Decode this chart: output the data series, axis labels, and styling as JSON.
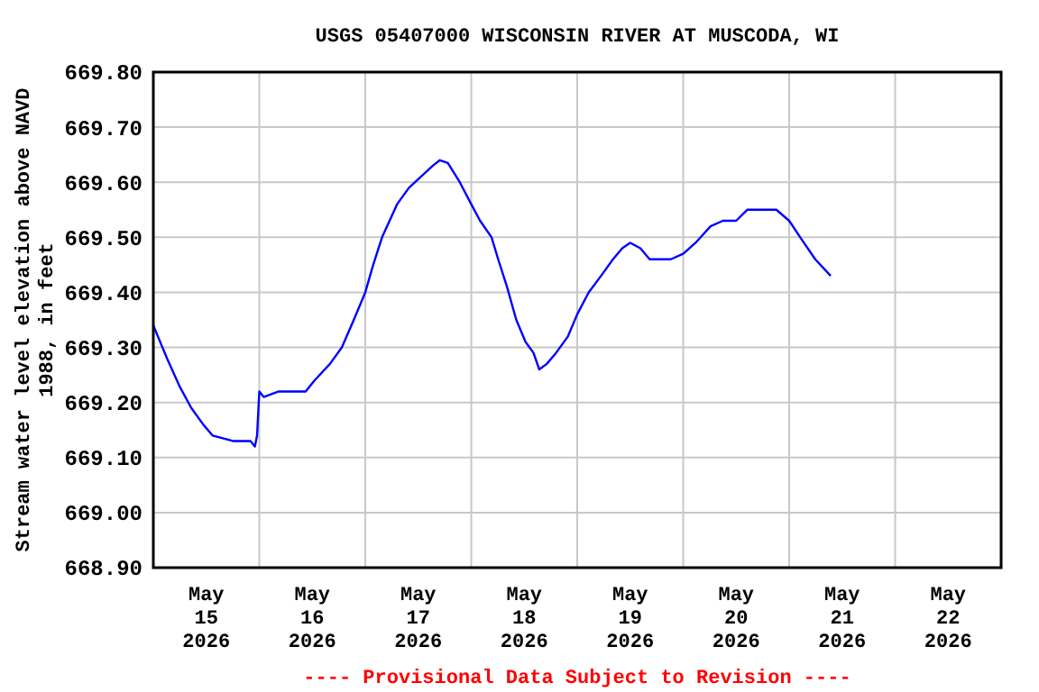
{
  "chart_data": {
    "type": "line",
    "title": "USGS 05407000 WISCONSIN RIVER AT MUSCODA, WI",
    "ylabel": "Stream water level elevation above NAVD 1988, in feet",
    "annotations": [
      "---- Provisional Data Subject to Revision ----"
    ],
    "xlim": [
      "2026-05-15T00:00",
      "2026-05-23T00:00"
    ],
    "xticks": [
      {
        "value": "2026-05-15T12:00",
        "label": "May\n15\n2026"
      },
      {
        "value": "2026-05-16T12:00",
        "label": "May\n16\n2026"
      },
      {
        "value": "2026-05-17T12:00",
        "label": "May\n17\n2026"
      },
      {
        "value": "2026-05-18T12:00",
        "label": "May\n18\n2026"
      },
      {
        "value": "2026-05-19T12:00",
        "label": "May\n19\n2026"
      },
      {
        "value": "2026-05-20T12:00",
        "label": "May\n20\n2026"
      },
      {
        "value": "2026-05-21T12:00",
        "label": "May\n21\n2026"
      },
      {
        "value": "2026-05-22T12:00",
        "label": "May\n22\n2026"
      },
      {
        "value": "2026-05-16T00:00",
        "label": null
      },
      {
        "value": "2026-05-17T00:00",
        "label": null
      },
      {
        "value": "2026-05-18T00:00",
        "label": null
      },
      {
        "value": "2026-05-19T00:00",
        "label": null
      },
      {
        "value": "2026-05-20T00:00",
        "label": null
      },
      {
        "value": "2026-05-21T00:00",
        "label": null
      },
      {
        "value": "2026-05-22T00:00",
        "label": null
      }
    ],
    "ylim": [
      668.9,
      669.8
    ],
    "yticks": [
      {
        "value": 668.9,
        "label": "668.90"
      },
      {
        "value": 669.0,
        "label": "669.00"
      },
      {
        "value": 669.1,
        "label": "669.10"
      },
      {
        "value": 669.2,
        "label": "669.20"
      },
      {
        "value": 669.3,
        "label": "669.30"
      },
      {
        "value": 669.4,
        "label": "669.40"
      },
      {
        "value": 669.5,
        "label": "669.50"
      },
      {
        "value": 669.6,
        "label": "669.60"
      },
      {
        "value": 669.7,
        "label": "669.70"
      },
      {
        "value": 669.8,
        "label": "669.80"
      }
    ],
    "grid": true,
    "marker": "none",
    "line_style": "solid",
    "series": [
      {
        "color": "#0000ff",
        "x": [
          "2026-05-15T00:00",
          "2026-05-15T03:06",
          "2026-05-15T05:54",
          "2026-05-15T08:36",
          "2026-05-15T11:18",
          "2026-05-15T13:24",
          "2026-05-15T18:00",
          "2026-05-15T22:00",
          "2026-05-15T23:00",
          "2026-05-15T23:30",
          "2026-05-16T00:00",
          "2026-05-16T01:00",
          "2026-05-16T04:24",
          "2026-05-16T10:30",
          "2026-05-16T12:30",
          "2026-05-16T16:00",
          "2026-05-16T18:42",
          "2026-05-16T21:24",
          "2026-05-17T00:00",
          "2026-05-17T01:48",
          "2026-05-17T03:48",
          "2026-05-17T07:12",
          "2026-05-17T09:54",
          "2026-05-17T12:36",
          "2026-05-17T15:18",
          "2026-05-17T16:54",
          "2026-05-17T18:42",
          "2026-05-17T21:24",
          "2026-05-18T00:00",
          "2026-05-18T02:00",
          "2026-05-18T04:36",
          "2026-05-18T06:06",
          "2026-05-18T08:06",
          "2026-05-18T10:12",
          "2026-05-18T12:18",
          "2026-05-18T14:06",
          "2026-05-18T15:24",
          "2026-05-18T17:06",
          "2026-05-18T19:12",
          "2026-05-18T21:54",
          "2026-05-19T00:00",
          "2026-05-19T02:36",
          "2026-05-19T05:24",
          "2026-05-19T08:06",
          "2026-05-19T10:12",
          "2026-05-19T12:00",
          "2026-05-19T14:18",
          "2026-05-19T16:24",
          "2026-05-19T21:12",
          "2026-05-20T00:00",
          "2026-05-20T02:48",
          "2026-05-20T06:12",
          "2026-05-20T09:00",
          "2026-05-20T12:00",
          "2026-05-20T14:30",
          "2026-05-20T21:06",
          "2026-05-21T00:00",
          "2026-05-21T02:30",
          "2026-05-21T05:54",
          "2026-05-21T09:24"
        ],
        "values": [
          669.34,
          669.28,
          669.23,
          669.19,
          669.16,
          669.14,
          669.13,
          669.13,
          669.12,
          669.14,
          669.22,
          669.21,
          669.22,
          669.22,
          669.24,
          669.27,
          669.3,
          669.35,
          669.4,
          669.45,
          669.5,
          669.56,
          669.59,
          669.61,
          669.63,
          669.64,
          669.635,
          669.6,
          669.56,
          669.53,
          669.5,
          669.46,
          669.41,
          669.35,
          669.31,
          669.29,
          669.26,
          669.27,
          669.29,
          669.32,
          669.36,
          669.4,
          669.43,
          669.46,
          669.48,
          669.49,
          669.48,
          669.46,
          669.46,
          669.47,
          669.49,
          669.52,
          669.53,
          669.53,
          669.55,
          669.55,
          669.53,
          669.5,
          669.46,
          669.43
        ]
      }
    ]
  }
}
